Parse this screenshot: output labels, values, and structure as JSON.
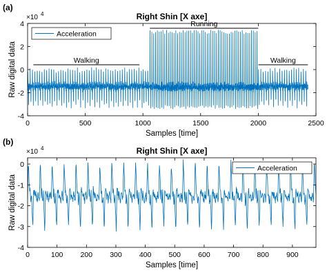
{
  "chart_data": [
    {
      "type": "line",
      "panel_label": "(a)",
      "title": "Right Shin [X axe]",
      "xlabel": "Samples [time]",
      "ylabel": "Raw digital data",
      "y_multiplier": "×10",
      "y_multiplier_exp": "4",
      "xlim": [
        0,
        2500
      ],
      "ylim": [
        -4,
        4
      ],
      "x_ticks": [
        0,
        500,
        1000,
        1500,
        2000,
        2500
      ],
      "y_ticks": [
        -4,
        -2,
        0,
        2,
        4
      ],
      "x_tick_labels": [
        "0",
        "500",
        "1000",
        "1500",
        "2000",
        "2500"
      ],
      "y_tick_labels": [
        "-4",
        "-2",
        "0",
        "2",
        "4"
      ],
      "legend": "top-left",
      "grid": false,
      "color": "#0072BD",
      "series": [
        {
          "name": "Acceleration",
          "segments": [
            {
              "x_start": 0,
              "x_end": 1000,
              "period": 20.5,
              "baseline": -1.5,
              "high": 0.2,
              "low": -3.2
            },
            {
              "x_start": 1000,
              "x_end": 1060,
              "period": 20,
              "baseline": -1.5,
              "high": 0.3,
              "low": -3.3
            },
            {
              "x_start": 1060,
              "x_end": 2000,
              "period": 16,
              "baseline": -1.6,
              "high": 3.4,
              "low": -3.3
            },
            {
              "x_start": 2000,
              "x_end": 2430,
              "period": 20.5,
              "baseline": -1.5,
              "high": 0.2,
              "low": -3.2
            }
          ]
        }
      ],
      "annotations": [
        {
          "text": "Walking",
          "x_start": 50,
          "x_end": 970,
          "y": 0.3
        },
        {
          "text": "Running",
          "x_start": 1060,
          "x_end": 2000,
          "y": 3.4
        },
        {
          "text": "Walking",
          "x_start": 2000,
          "x_end": 2430,
          "y": 0.3
        }
      ]
    },
    {
      "type": "line",
      "panel_label": "(b)",
      "title": "Right Shin [X axe]",
      "xlabel": "Samples [time]",
      "ylabel": "Raw digital data",
      "y_multiplier": "×10",
      "y_multiplier_exp": "4",
      "xlim": [
        0,
        980
      ],
      "ylim": [
        -4,
        0.3
      ],
      "x_ticks": [
        0,
        100,
        200,
        300,
        400,
        500,
        600,
        700,
        800,
        900
      ],
      "y_ticks": [
        -4,
        -3,
        -2,
        -1,
        0
      ],
      "x_tick_labels": [
        "0",
        "100",
        "200",
        "300",
        "400",
        "500",
        "600",
        "700",
        "800",
        "900"
      ],
      "y_tick_labels": [
        "-4",
        "-3",
        "-2",
        "-1",
        "0"
      ],
      "legend": "top-right",
      "grid": false,
      "color": "#0072BD",
      "series": [
        {
          "name": "Acceleration",
          "segments": [
            {
              "x_start": 0,
              "x_end": 980,
              "period": 40.5,
              "baseline": -1.6,
              "high": 0.1,
              "low": -3.2
            }
          ]
        }
      ]
    }
  ]
}
